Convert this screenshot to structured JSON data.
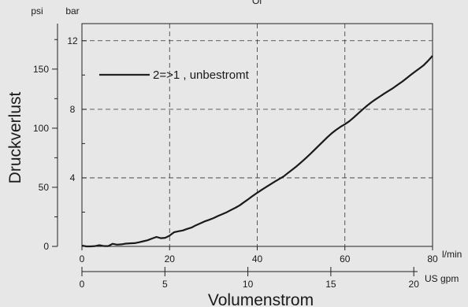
{
  "chart_data": {
    "type": "line",
    "units": {
      "psi": "psi",
      "bar": "bar",
      "lmin": "l/min",
      "usgpm": "US gpm"
    },
    "ylabel": "Druckverlust",
    "xlabel": "Volumenstrom",
    "legend": {
      "label": "2=>1 , unbestromt",
      "placement": "top-left"
    },
    "top_partial_text": "Ol",
    "x_lmin": {
      "range": [
        0,
        80
      ],
      "ticks": [
        "0",
        "20",
        "40",
        "60",
        "80"
      ],
      "tick_values": [
        0,
        20,
        40,
        60,
        80
      ]
    },
    "x_usgpm": {
      "range": [
        0,
        21.13
      ],
      "ticks": [
        "0",
        "5",
        "10",
        "15",
        "20"
      ],
      "tick_values": [
        0,
        5,
        10,
        15,
        20
      ]
    },
    "y_bar": {
      "range": [
        0,
        13
      ],
      "ticks": [
        "4",
        "8",
        "12"
      ],
      "tick_values": [
        4,
        8,
        12
      ],
      "grid": true
    },
    "y_psi": {
      "range": [
        0,
        188.5
      ],
      "ticks": [
        "0",
        "50",
        "100",
        "150"
      ],
      "tick_values": [
        0,
        50,
        100,
        150
      ]
    },
    "grid": {
      "x": true,
      "y": true,
      "style": "dashed"
    },
    "series": [
      {
        "name": "2=>1 , unbestromt",
        "x_unit": "l/min",
        "y_unit": "bar",
        "x": [
          0,
          1,
          2,
          3,
          4,
          5,
          6,
          7,
          8,
          9,
          10,
          11,
          12,
          13,
          14,
          15,
          16,
          17,
          18,
          19,
          20,
          21,
          22,
          23,
          24,
          25,
          26,
          27,
          28,
          29,
          30,
          31,
          32,
          33,
          34,
          35,
          36,
          37,
          38,
          39,
          40,
          41,
          42,
          43,
          44,
          45,
          46,
          47,
          48,
          49,
          50,
          51,
          52,
          53,
          54,
          55,
          56,
          57,
          58,
          59,
          60,
          61,
          62,
          63,
          64,
          65,
          66,
          67,
          68,
          69,
          70,
          71,
          72,
          73,
          74,
          75,
          76,
          77,
          78,
          79,
          80
        ],
        "y": [
          0.05,
          0.0,
          0.0,
          0.02,
          0.07,
          0.02,
          0.02,
          0.15,
          0.1,
          0.12,
          0.16,
          0.18,
          0.19,
          0.24,
          0.3,
          0.36,
          0.46,
          0.55,
          0.48,
          0.5,
          0.63,
          0.82,
          0.88,
          0.93,
          1.02,
          1.1,
          1.23,
          1.34,
          1.46,
          1.55,
          1.65,
          1.77,
          1.88,
          1.99,
          2.12,
          2.25,
          2.4,
          2.58,
          2.76,
          2.95,
          3.13,
          3.3,
          3.46,
          3.62,
          3.78,
          3.93,
          4.08,
          4.28,
          4.48,
          4.68,
          4.9,
          5.13,
          5.37,
          5.62,
          5.87,
          6.12,
          6.37,
          6.6,
          6.8,
          6.98,
          7.13,
          7.3,
          7.52,
          7.75,
          7.98,
          8.2,
          8.4,
          8.58,
          8.75,
          8.92,
          9.08,
          9.24,
          9.42,
          9.6,
          9.8,
          10.0,
          10.2,
          10.38,
          10.58,
          10.83,
          11.12
        ]
      }
    ]
  }
}
